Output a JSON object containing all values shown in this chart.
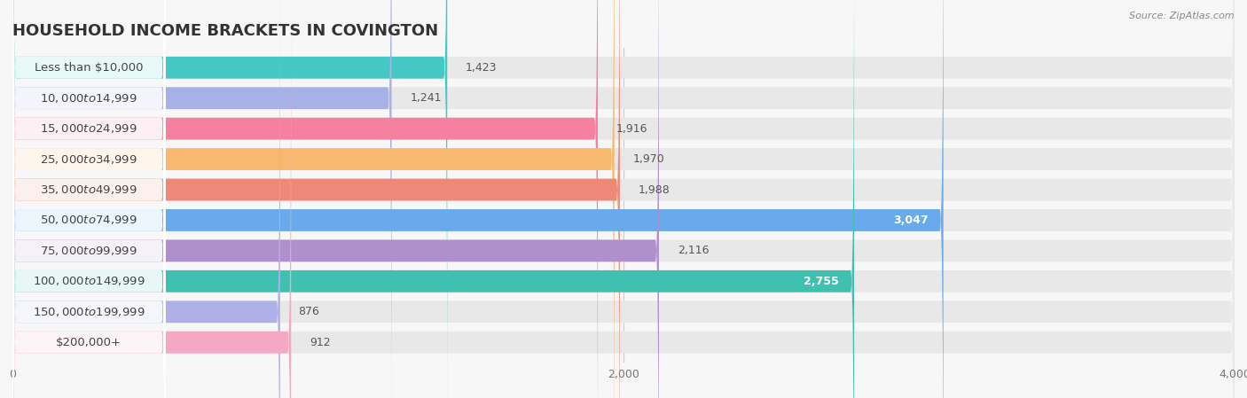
{
  "title": "HOUSEHOLD INCOME BRACKETS IN COVINGTON",
  "source": "Source: ZipAtlas.com",
  "categories": [
    "Less than $10,000",
    "$10,000 to $14,999",
    "$15,000 to $24,999",
    "$25,000 to $34,999",
    "$35,000 to $49,999",
    "$50,000 to $74,999",
    "$75,000 to $99,999",
    "$100,000 to $149,999",
    "$150,000 to $199,999",
    "$200,000+"
  ],
  "values": [
    1423,
    1241,
    1916,
    1970,
    1988,
    3047,
    2116,
    2755,
    876,
    912
  ],
  "bar_colors": [
    "#45C8C4",
    "#A8B0E8",
    "#F580A0",
    "#F8B870",
    "#EE8878",
    "#68AAEC",
    "#B090CC",
    "#40C0B0",
    "#B0B0E8",
    "#F4A8C4"
  ],
  "xlim": [
    0,
    4000
  ],
  "xticks": [
    0,
    2000,
    4000
  ],
  "background_color": "#f7f7f7",
  "bar_bg_color": "#e8e8e8",
  "title_fontsize": 13,
  "label_fontsize": 9.5,
  "value_fontsize": 9,
  "value_inside": [
    false,
    false,
    false,
    false,
    false,
    true,
    false,
    true,
    false,
    false
  ]
}
